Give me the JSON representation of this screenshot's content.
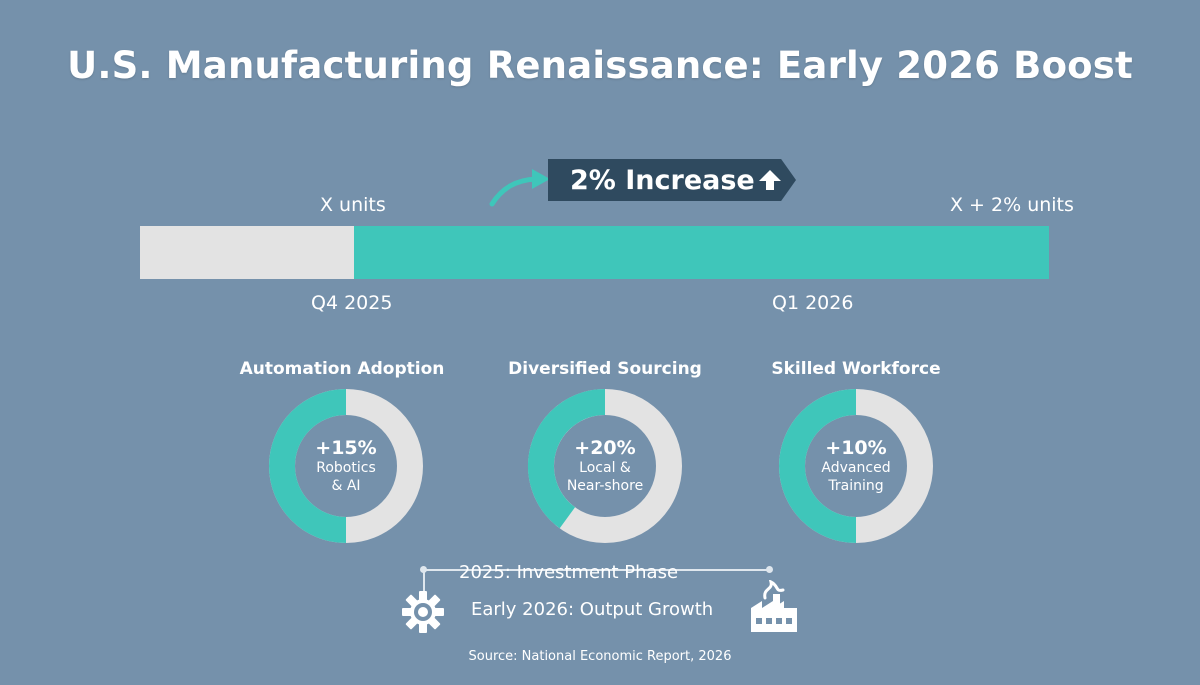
{
  "title": "U.S. Manufacturing Renaissance: Early 2026 Boost",
  "increase_badge": "2% Increase",
  "bar": {
    "start_label": "X units",
    "end_label": "X + 2% units",
    "start_period": "Q4 2025",
    "end_period": "Q1 2026",
    "colors": {
      "track": "#e3e3e3",
      "fill": "#3fc6ba"
    }
  },
  "donuts": [
    {
      "title": "Automation Adoption",
      "value_label": "+15%",
      "desc": [
        "Robotics",
        "& AI"
      ],
      "fill_fraction": 0.5
    },
    {
      "title": "Diversified Sourcing",
      "value_label": "+20%",
      "desc": [
        "Local &",
        "Near-shore"
      ],
      "fill_fraction": 0.4
    },
    {
      "title": "Skilled Workforce",
      "value_label": "+10%",
      "desc": [
        "Advanced",
        "Training"
      ],
      "fill_fraction": 0.5
    }
  ],
  "timeline": {
    "phase1": "2025: Investment Phase",
    "phase2": "Early 2026: Output Growth",
    "icons": [
      "gear-icon",
      "factory-icon"
    ]
  },
  "source": "Source: National Economic Report, 2026",
  "colors": {
    "background": "#7591ab",
    "accent": "#3fc6ba",
    "badge": "#2f4a5f",
    "ring_track": "#e3e3e3"
  },
  "chart_data": [
    {
      "type": "bar",
      "categories": [
        "Q4 2025",
        "Q1 2026"
      ],
      "values": [
        "X units",
        "X + 2% units"
      ],
      "annotation": "2% Increase"
    },
    {
      "type": "pie",
      "categories": [
        "Automation Adoption",
        "Diversified Sourcing",
        "Skilled Workforce"
      ],
      "values": [
        15,
        20,
        10
      ],
      "labels": [
        "+15%",
        "+20%",
        "+10%"
      ]
    }
  ]
}
